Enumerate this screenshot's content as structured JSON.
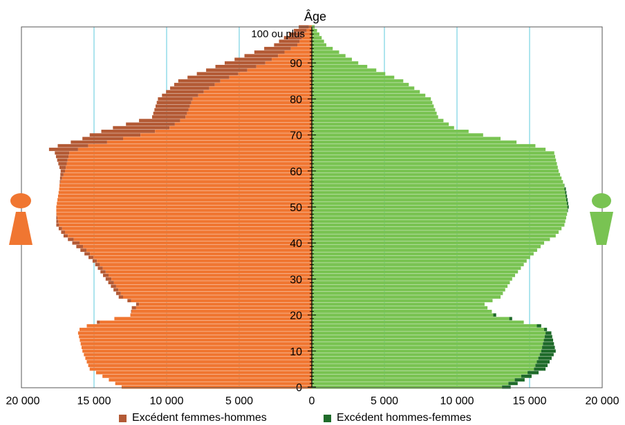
{
  "chart_data": {
    "type": "population-pyramid",
    "ylabel": "Âge",
    "top_age_label": "100 ou plus",
    "y_ticks": [
      "0",
      "10",
      "20",
      "30",
      "40",
      "50",
      "60",
      "70",
      "80",
      "90"
    ],
    "x_tick_labels": [
      "20 000",
      "15 000",
      "10 000",
      "5 000",
      "0",
      "5 000",
      "10 000",
      "15 000",
      "20 000"
    ],
    "x_tick_values": [
      -20000,
      -15000,
      -10000,
      -5000,
      0,
      5000,
      10000,
      15000,
      20000
    ],
    "xlim": [
      -20000,
      20000
    ],
    "ylim": [
      0,
      100
    ],
    "ages": [
      0,
      5,
      10,
      15,
      16,
      17,
      18,
      19,
      20,
      22,
      23,
      25,
      30,
      35,
      40,
      42,
      45,
      50,
      55,
      60,
      65,
      66,
      67,
      68,
      69,
      70,
      72,
      75,
      80,
      85,
      90,
      95,
      100
    ],
    "women": [
      13100,
      15300,
      15800,
      16100,
      16000,
      15500,
      14800,
      13600,
      12500,
      12400,
      12100,
      13300,
      14200,
      15100,
      16500,
      17100,
      17600,
      17600,
      17400,
      17300,
      17700,
      18100,
      17500,
      16600,
      15800,
      15300,
      13700,
      11000,
      10600,
      9200,
      6000,
      2600,
      900
    ],
    "men": [
      13700,
      16100,
      16800,
      16500,
      16200,
      15800,
      14600,
      13800,
      12700,
      12100,
      11900,
      13000,
      13800,
      14800,
      16000,
      16800,
      17400,
      17700,
      17500,
      17000,
      16700,
      16100,
      15400,
      14100,
      13000,
      11800,
      9800,
      8700,
      8200,
      6300,
      3200,
      1000,
      200
    ],
    "colors": {
      "women_base": "#f07631",
      "women_excess": "#b35a35",
      "men_base": "#79c352",
      "men_excess": "#1f6b2a",
      "grid": "#5bc8dc"
    },
    "legend": [
      {
        "label": "Excédent femmes-hommes",
        "color": "#b35a35"
      },
      {
        "label": "Excédent hommes-femmes",
        "color": "#1f6b2a"
      }
    ],
    "icons": [
      "woman-icon",
      "man-icon"
    ]
  }
}
